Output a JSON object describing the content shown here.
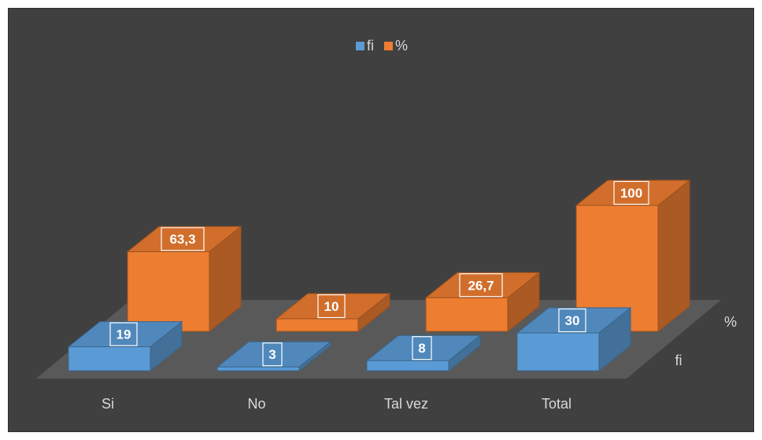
{
  "chart_data": {
    "type": "bar",
    "subtype": "3d-column",
    "categories": [
      "Si",
      "No",
      "Tal vez",
      "Total"
    ],
    "series": [
      {
        "name": "fi",
        "values": [
          19,
          3,
          8,
          30
        ],
        "labels": [
          "19",
          "3",
          "8",
          "30"
        ],
        "color": "#5b9bd5"
      },
      {
        "name": "%",
        "values": [
          63.3,
          10,
          26.7,
          100
        ],
        "labels": [
          "63,3",
          "10",
          "26,7",
          "100"
        ],
        "color": "#ed7d31"
      }
    ],
    "depth_axis_labels": [
      "fi",
      "%"
    ],
    "legend_position": "top",
    "background": "#404040",
    "grid": false,
    "title": ""
  }
}
